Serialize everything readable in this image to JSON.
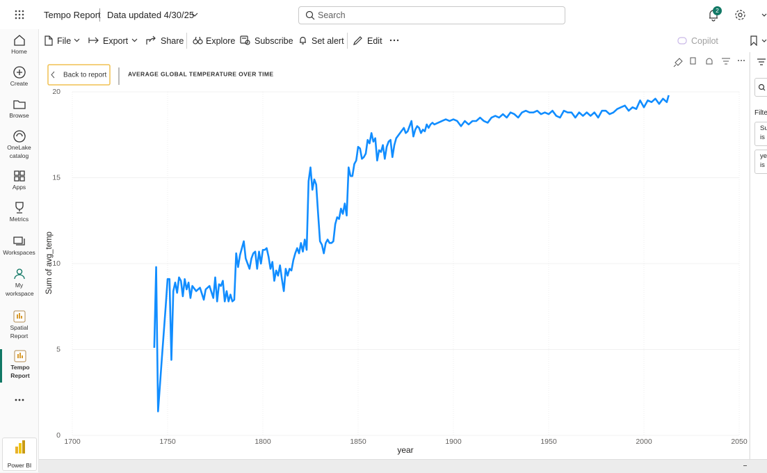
{
  "header": {
    "report_name": "Tempo Report",
    "data_updated": "Data updated 4/30/25",
    "search_placeholder": "Search",
    "notification_count": 2
  },
  "nav": [
    {
      "label": "Home"
    },
    {
      "label": "Create"
    },
    {
      "label": "Browse"
    },
    {
      "label": "OneLake catalog"
    },
    {
      "label": "Apps"
    },
    {
      "label": "Metrics"
    },
    {
      "label": "Workspaces"
    },
    {
      "label": "My workspace"
    },
    {
      "label": "Spatial Report"
    },
    {
      "label": "Tempo Report"
    }
  ],
  "nav_footer": "Power BI",
  "toolbar": {
    "file": "File",
    "export": "Export",
    "share": "Share",
    "explore": "Explore",
    "subscribe": "Subscribe",
    "set_alert": "Set alert",
    "edit": "Edit",
    "copilot": "Copilot"
  },
  "report": {
    "back_button": "Back to report"
  },
  "filters_pane": {
    "title": "Filte",
    "cards": [
      [
        "Su",
        "is ("
      ],
      [
        "ye",
        "is ("
      ]
    ]
  },
  "chart_data": {
    "type": "line",
    "title": "AVERAGE GLOBAL TEMPERATURE OVER TIME",
    "x_label": "year",
    "y_label": "Sum of avg_temp",
    "color": "#118dff",
    "grid": true,
    "xlim": [
      1700,
      2050
    ],
    "xticks": [
      1700,
      1750,
      1800,
      1850,
      1900,
      1950,
      2000,
      2050
    ],
    "ylim": [
      0,
      20
    ],
    "yticks": [
      0,
      5,
      10,
      15,
      20
    ],
    "x": [
      1743,
      1744,
      1745,
      1747,
      1749,
      1750,
      1751,
      1752,
      1753,
      1754,
      1755,
      1756,
      1757,
      1758,
      1759,
      1760,
      1761,
      1762,
      1763,
      1765,
      1767,
      1769,
      1770,
      1772,
      1774,
      1775,
      1776,
      1777,
      1778,
      1779,
      1780,
      1781,
      1782,
      1783,
      1784,
      1785,
      1786,
      1787,
      1788,
      1789,
      1790,
      1791,
      1792,
      1793,
      1794,
      1795,
      1796,
      1797,
      1798,
      1799,
      1800,
      1801,
      1802,
      1803,
      1804,
      1805,
      1806,
      1807,
      1808,
      1809,
      1810,
      1811,
      1812,
      1813,
      1814,
      1815,
      1816,
      1817,
      1818,
      1819,
      1820,
      1821,
      1822,
      1823,
      1824,
      1825,
      1826,
      1827,
      1828,
      1829,
      1830,
      1831,
      1832,
      1833,
      1834,
      1835,
      1836,
      1837,
      1838,
      1839,
      1840,
      1841,
      1842,
      1843,
      1844,
      1845,
      1846,
      1847,
      1848,
      1849,
      1850,
      1851,
      1852,
      1853,
      1854,
      1855,
      1856,
      1857,
      1858,
      1859,
      1860,
      1861,
      1862,
      1863,
      1864,
      1865,
      1866,
      1867,
      1868,
      1869,
      1870,
      1872,
      1874,
      1875,
      1876,
      1878,
      1879,
      1880,
      1881,
      1882,
      1883,
      1884,
      1885,
      1886,
      1887,
      1888,
      1889,
      1890,
      1892,
      1894,
      1896,
      1898,
      1900,
      1902,
      1904,
      1906,
      1908,
      1910,
      1912,
      1914,
      1916,
      1918,
      1920,
      1922,
      1924,
      1926,
      1928,
      1930,
      1932,
      1934,
      1936,
      1938,
      1940,
      1942,
      1944,
      1946,
      1948,
      1950,
      1952,
      1954,
      1956,
      1958,
      1960,
      1962,
      1964,
      1966,
      1968,
      1970,
      1972,
      1974,
      1976,
      1978,
      1980,
      1982,
      1984,
      1986,
      1988,
      1990,
      1992,
      1994,
      1996,
      1998,
      2000,
      2002,
      2004,
      2006,
      2008,
      2010,
      2012,
      2013
    ],
    "values": [
      5.1,
      9.8,
      1.4,
      4.5,
      7.5,
      9.1,
      9.1,
      4.4,
      8.4,
      8.9,
      8.3,
      9.2,
      9.0,
      8.1,
      9.1,
      8.5,
      8.9,
      8.0,
      8.7,
      8.4,
      8.6,
      7.9,
      8.5,
      8.7,
      8.0,
      9.2,
      7.8,
      8.8,
      8.7,
      9.0,
      7.8,
      8.4,
      7.8,
      8.2,
      7.8,
      7.9,
      10.6,
      9.8,
      10.5,
      10.9,
      11.3,
      10.3,
      10.0,
      9.7,
      10.3,
      10.6,
      10.7,
      9.7,
      10.7,
      10.0,
      10.8,
      10.8,
      10.9,
      10.4,
      9.7,
      10.1,
      9.0,
      9.6,
      9.3,
      9.9,
      9.1,
      8.4,
      9.7,
      9.3,
      9.7,
      9.6,
      10.2,
      10.6,
      10.9,
      10.6,
      11.2,
      10.7,
      11.4,
      10.8,
      14.8,
      15.6,
      14.3,
      14.9,
      14.6,
      12.9,
      11.3,
      11.1,
      10.6,
      11.2,
      11.4,
      11.2,
      11.2,
      11.3,
      12.3,
      12.7,
      12.6,
      13.2,
      12.9,
      13.5,
      12.8,
      15.6,
      15.1,
      15.1,
      15.8,
      16.0,
      16.8,
      16.7,
      16.1,
      16.2,
      16.4,
      17.2,
      17.0,
      17.6,
      17.1,
      17.3,
      16.0,
      16.6,
      16.5,
      16.9,
      16.1,
      16.8,
      17.1,
      17.2,
      16.2,
      16.9,
      17.3,
      17.6,
      17.9,
      17.6,
      17.7,
      18.3,
      17.4,
      17.8,
      18.0,
      17.9,
      17.6,
      17.8,
      17.7,
      18.1,
      17.9,
      18.1,
      18.2,
      18.1,
      18.2,
      18.3,
      18.4,
      18.3,
      18.4,
      18.3,
      18.0,
      18.3,
      18.1,
      18.3,
      18.3,
      18.5,
      18.3,
      18.2,
      18.5,
      18.6,
      18.5,
      18.7,
      18.5,
      18.8,
      18.7,
      18.5,
      18.8,
      18.9,
      18.8,
      18.8,
      18.9,
      18.7,
      18.8,
      18.7,
      18.9,
      18.6,
      18.5,
      18.9,
      18.8,
      18.8,
      18.5,
      18.8,
      18.6,
      18.8,
      18.6,
      18.8,
      18.5,
      18.9,
      18.9,
      18.7,
      18.8,
      19.0,
      19.1,
      19.2,
      18.9,
      19.1,
      19.0,
      19.5,
      19.1,
      19.5,
      19.4,
      19.6,
      19.3,
      19.6,
      19.4,
      19.8
    ]
  }
}
